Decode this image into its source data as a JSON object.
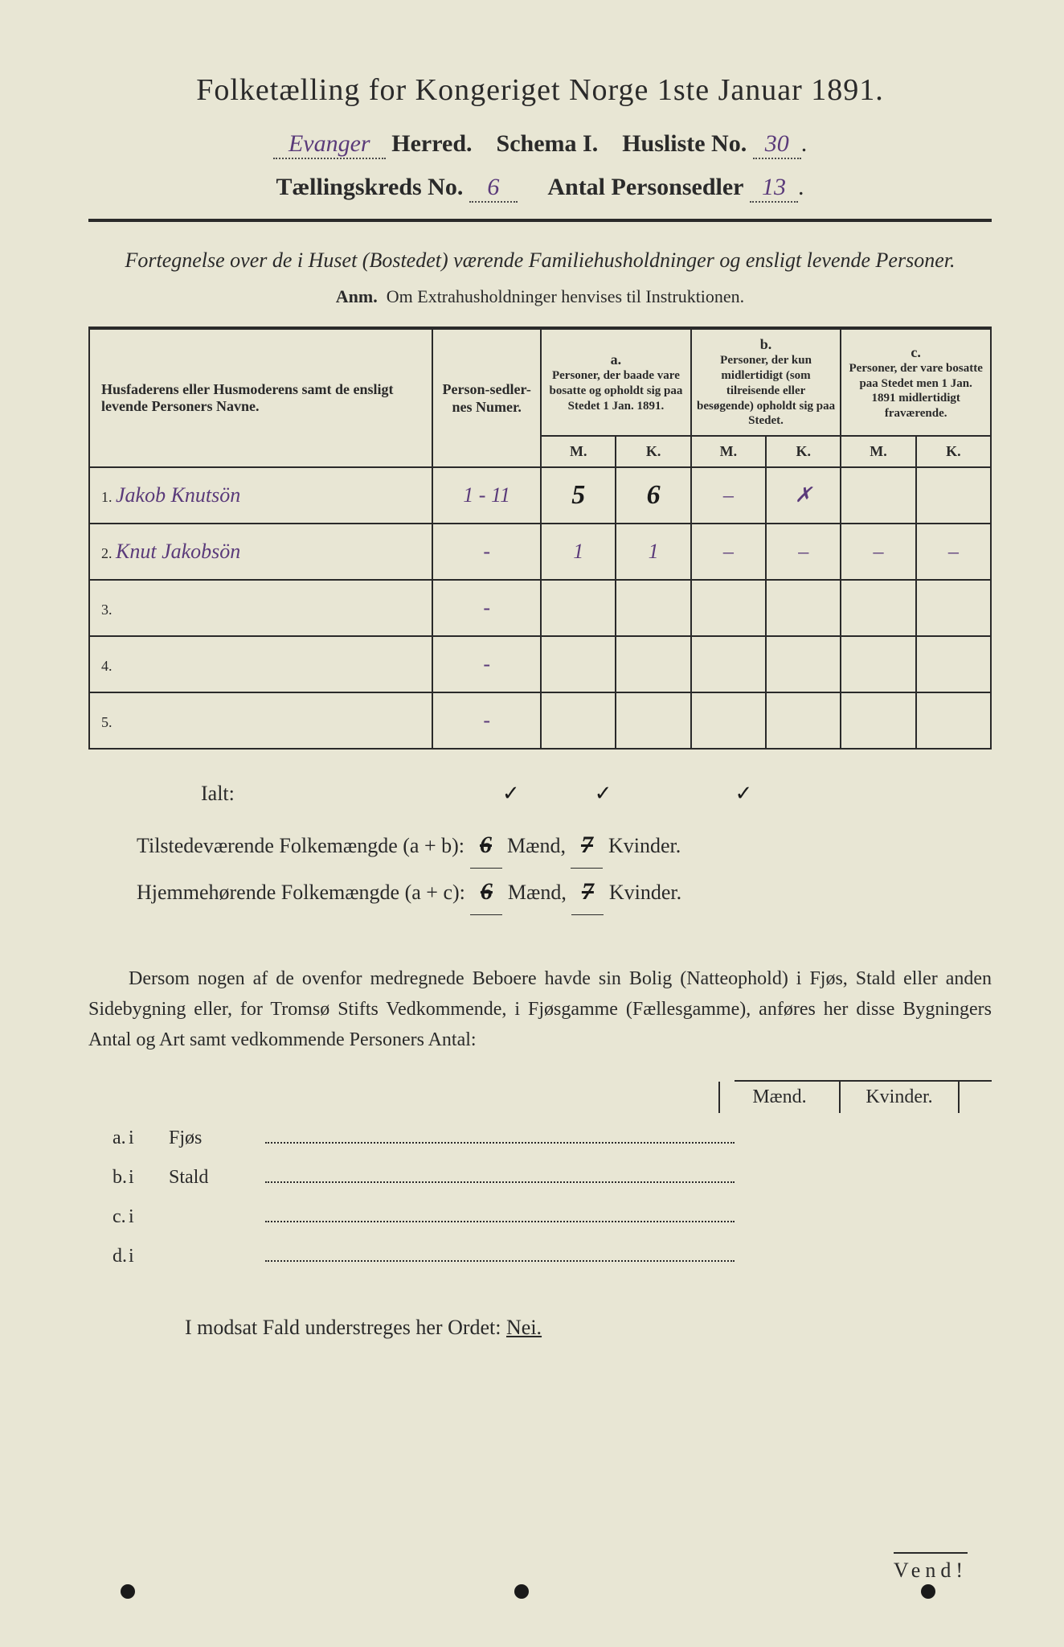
{
  "header": {
    "title": "Folketælling for Kongeriget Norge 1ste Januar 1891.",
    "herred_value": "Evanger",
    "herred_label": "Herred.",
    "schema_label": "Schema I.",
    "husliste_label": "Husliste No.",
    "husliste_value": "30",
    "kreds_label": "Tællingskreds No.",
    "kreds_value": "6",
    "antal_label": "Antal Personsedler",
    "antal_value": "13"
  },
  "subtitle": "Fortegnelse over de i Huset (Bostedet) værende Familiehusholdninger og ensligt levende Personer.",
  "anm_label": "Anm.",
  "anm_text": "Om Extrahusholdninger henvises til Instruktionen.",
  "table": {
    "col_name": "Husfaderens eller Husmoderens samt de ensligt levende Personers Navne.",
    "col_num": "Person-sedler-nes Numer.",
    "col_a_label": "a.",
    "col_a_desc": "Personer, der baade vare bosatte og opholdt sig paa Stedet 1 Jan. 1891.",
    "col_b_label": "b.",
    "col_b_desc": "Personer, der kun midlertidigt (som tilreisende eller besøgende) opholdt sig paa Stedet.",
    "col_c_label": "c.",
    "col_c_desc": "Personer, der vare bosatte paa Stedet men 1 Jan. 1891 midlertidigt fraværende.",
    "m": "M.",
    "k": "K.",
    "rows": [
      {
        "n": "1.",
        "name": "Jakob Knutsön",
        "num": "1 - 11",
        "aM": "5",
        "aK": "6",
        "bM": "–",
        "bK": "✗",
        "cM": "",
        "cK": ""
      },
      {
        "n": "2.",
        "name": "Knut Jakobsön",
        "num": "-",
        "aM": "1",
        "aK": "1",
        "bM": "–",
        "bK": "–",
        "cM": "–",
        "cK": "–"
      },
      {
        "n": "3.",
        "name": "",
        "num": "-",
        "aM": "",
        "aK": "",
        "bM": "",
        "bK": "",
        "cM": "",
        "cK": ""
      },
      {
        "n": "4.",
        "name": "",
        "num": "-",
        "aM": "",
        "aK": "",
        "bM": "",
        "bK": "",
        "cM": "",
        "cK": ""
      },
      {
        "n": "5.",
        "name": "",
        "num": "-",
        "aM": "",
        "aK": "",
        "bM": "",
        "bK": "",
        "cM": "",
        "cK": ""
      }
    ]
  },
  "totals": {
    "ialt": "Ialt:",
    "tick_a": "✓",
    "tick_b": "✓",
    "tick_c": "✓",
    "line1_label": "Tilstedeværende Folkemængde (a + b):",
    "line1_m": "6",
    "line1_maend": "Mænd,",
    "line1_k": "7",
    "line1_kv": "Kvinder.",
    "line2_label": "Hjemmehørende Folkemængde (a + c):",
    "line2_m": "6",
    "line2_maend": "Mænd,",
    "line2_k": "7",
    "line2_kv": "Kvinder."
  },
  "paragraph": "Dersom nogen af de ovenfor medregnede Beboere havde sin Bolig (Natteophold) i Fjøs, Stald eller anden Sidebygning eller, for Tromsø Stifts Vedkommende, i Fjøsgamme (Fællesgamme), anføres her disse Bygningers Antal og Art samt vedkommende Personers Antal:",
  "buildings": {
    "maend": "Mænd.",
    "kvinder": "Kvinder.",
    "rows": [
      {
        "lbl": "a.",
        "i": "i",
        "name": "Fjøs"
      },
      {
        "lbl": "b.",
        "i": "i",
        "name": "Stald"
      },
      {
        "lbl": "c.",
        "i": "i",
        "name": ""
      },
      {
        "lbl": "d.",
        "i": "i",
        "name": ""
      }
    ]
  },
  "footer": {
    "text_pre": "I modsat Fald understreges her Ordet: ",
    "nei": "Nei.",
    "vend": "Vend!"
  },
  "colors": {
    "paper": "#e8e6d4",
    "ink": "#2a2a2a",
    "handwrite_purple": "#5a3a7a",
    "handwrite_dark": "#1a1a1a"
  }
}
